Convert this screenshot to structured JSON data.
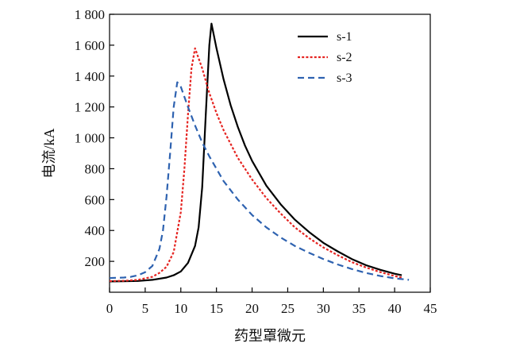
{
  "chart_data": {
    "type": "line",
    "xlabel": "药型罩微元",
    "ylabel": "电流/kA",
    "xlim": [
      0,
      45
    ],
    "ylim": [
      0,
      1800
    ],
    "x_ticks": [
      "0",
      "5",
      "10",
      "15",
      "20",
      "25",
      "30",
      "35",
      "40",
      "45"
    ],
    "y_ticks": [
      "200",
      "400",
      "600",
      "800",
      "1 000",
      "1 200",
      "1 400",
      "1 600",
      "1 800"
    ],
    "grid": false,
    "legend_position": "top-right",
    "series": [
      {
        "name": "s-1",
        "color": "#000000",
        "dash": "solid",
        "x": [
          0,
          2,
          4,
          6,
          8,
          9,
          10,
          11,
          12,
          12.5,
          13,
          13.5,
          14,
          14.3,
          15,
          16,
          17,
          18,
          19,
          20,
          22,
          24,
          26,
          28,
          30,
          32,
          34,
          36,
          38,
          40,
          41
        ],
        "y": [
          70,
          71,
          73,
          80,
          95,
          110,
          135,
          190,
          300,
          420,
          680,
          1150,
          1600,
          1740,
          1580,
          1380,
          1210,
          1070,
          950,
          850,
          690,
          570,
          470,
          390,
          320,
          265,
          215,
          175,
          145,
          120,
          110
        ]
      },
      {
        "name": "s-2",
        "color": "#e52421",
        "dash": "dotted",
        "x": [
          0,
          2,
          4,
          6,
          7,
          8,
          9,
          10,
          10.5,
          11,
          11.5,
          12,
          13,
          14,
          15,
          16,
          18,
          20,
          22,
          24,
          26,
          28,
          30,
          32,
          34,
          36,
          38,
          40,
          41
        ],
        "y": [
          72,
          74,
          80,
          100,
          125,
          165,
          260,
          520,
          800,
          1150,
          1450,
          1580,
          1450,
          1290,
          1160,
          1050,
          870,
          730,
          610,
          510,
          420,
          350,
          290,
          240,
          195,
          160,
          130,
          105,
          95
        ]
      },
      {
        "name": "s-3",
        "color": "#2e62b0",
        "dash": "dashed",
        "x": [
          0,
          2,
          3,
          4,
          5,
          6,
          7,
          7.5,
          8,
          8.5,
          9,
          9.5,
          10,
          11,
          12,
          13,
          14,
          16,
          18,
          20,
          22,
          24,
          26,
          28,
          30,
          32,
          34,
          36,
          38,
          40,
          42
        ],
        "y": [
          92,
          95,
          100,
          110,
          130,
          170,
          280,
          400,
          620,
          900,
          1200,
          1360,
          1330,
          1200,
          1080,
          970,
          880,
          720,
          600,
          500,
          420,
          355,
          300,
          255,
          215,
          180,
          150,
          125,
          105,
          90,
          80
        ]
      }
    ]
  }
}
